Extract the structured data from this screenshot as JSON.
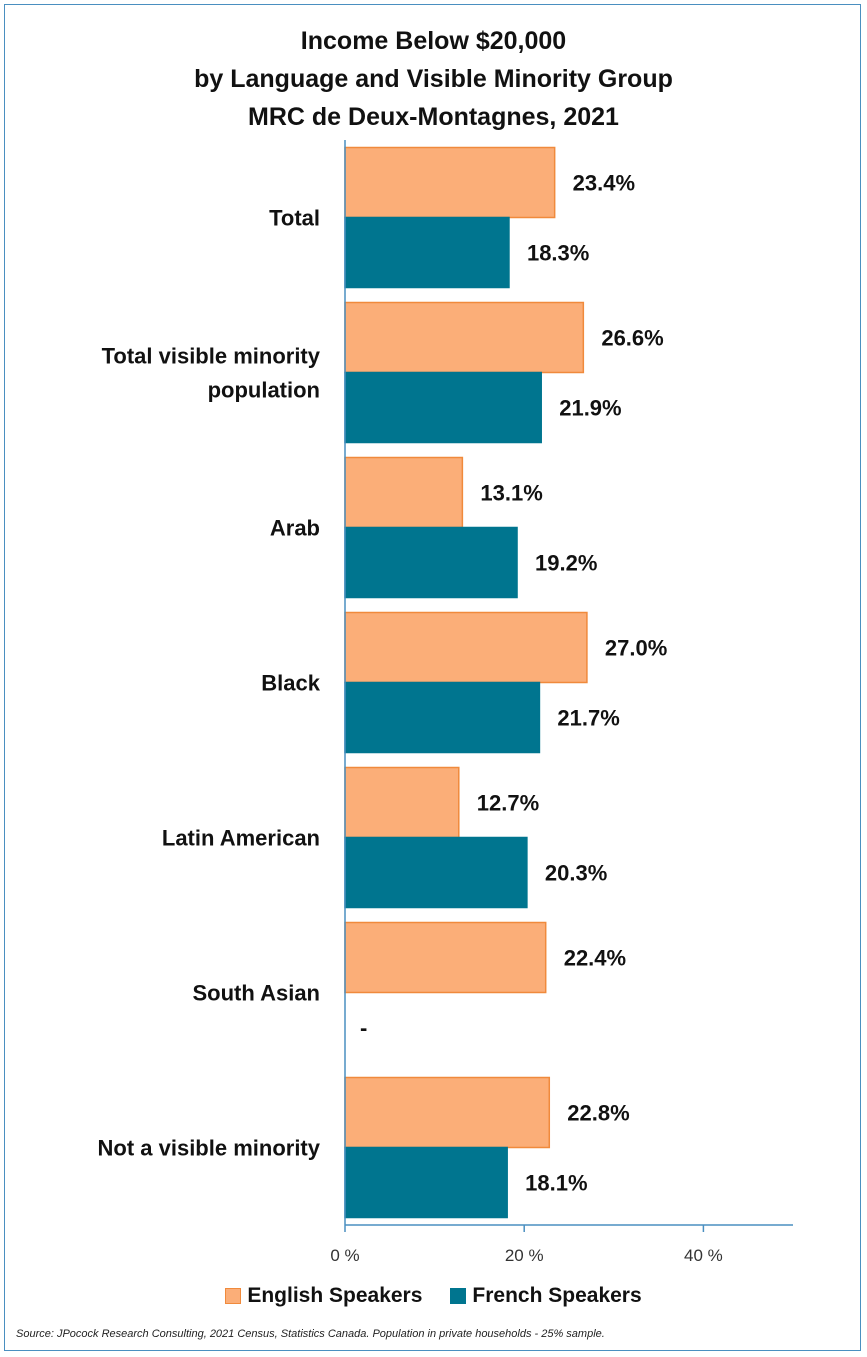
{
  "chart_data": {
    "type": "bar",
    "orientation": "horizontal",
    "title": [
      "Income Below $20,000",
      "by Language and Visible Minority Group",
      "MRC de Deux-Montagnes, 2021"
    ],
    "categories": [
      "Total",
      "Total visible minority population",
      "Arab",
      "Black",
      "Latin American",
      "South Asian",
      "Not a visible minority"
    ],
    "category_lines": [
      [
        "Total"
      ],
      [
        "Total visible minority",
        "population"
      ],
      [
        "Arab"
      ],
      [
        "Black"
      ],
      [
        "Latin American"
      ],
      [
        "South Asian"
      ],
      [
        "Not a visible minority"
      ]
    ],
    "series": [
      {
        "name": "English Speakers",
        "color": "#fbae78",
        "border_color": "#f08a3c",
        "values": [
          23.4,
          26.6,
          13.1,
          27.0,
          12.7,
          22.4,
          22.8
        ],
        "labels": [
          "23.4%",
          "26.6%",
          "13.1%",
          "27.0%",
          "12.7%",
          "22.4%",
          "22.8%"
        ]
      },
      {
        "name": "French Speakers",
        "color": "#00758f",
        "border_color": "#00758f",
        "values": [
          18.3,
          21.9,
          19.2,
          21.7,
          20.3,
          null,
          18.1
        ],
        "labels": [
          "18.3%",
          "21.9%",
          "19.2%",
          "21.7%",
          "20.3%",
          "-",
          "18.1%"
        ]
      }
    ],
    "xlim": [
      0,
      50
    ],
    "xticks": [
      0,
      20,
      40
    ],
    "xtick_labels": [
      "0 %",
      "20 %",
      "40 %"
    ],
    "legend_position": "bottom",
    "grid": false
  },
  "legend": {
    "english_label": "English Speakers",
    "french_label": "French Speakers"
  },
  "source": "Source: JPocock Research Consulting, 2021 Census, Statistics Canada. Population in private households - 25% sample."
}
